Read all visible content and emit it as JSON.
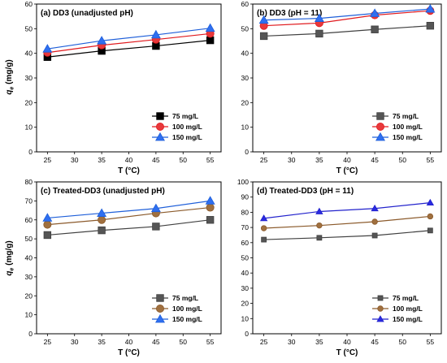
{
  "chart_data": [
    {
      "type": "line",
      "title": "(a) DD3 (unadjusted pH)",
      "xlabel": "T (°C)",
      "ylabel_main": "q",
      "ylabel_sub": "e",
      "ylabel_unit": " (mg/g)",
      "xlim": [
        23,
        57
      ],
      "ylim": [
        0,
        60
      ],
      "xticks": [
        25,
        30,
        35,
        40,
        45,
        50,
        55
      ],
      "yticks": [
        0,
        10,
        20,
        30,
        40,
        50,
        60
      ],
      "x": [
        25,
        35,
        45,
        55
      ],
      "legend_position": "bottom-right",
      "series": [
        {
          "name": "75 mg/L",
          "values": [
            38.5,
            41,
            43,
            45.3
          ],
          "color": "#000000",
          "fill": "#000000",
          "marker": "square"
        },
        {
          "name": "100 mg/L",
          "values": [
            40.3,
            43.3,
            45.6,
            48
          ],
          "color": "#e0191d",
          "fill": "#e8383b",
          "marker": "circle"
        },
        {
          "name": "150 mg/L",
          "values": [
            41.8,
            45.1,
            47.5,
            50.2
          ],
          "color": "#1f5fd9",
          "fill": "#2f6ff0",
          "marker": "triangle"
        }
      ]
    },
    {
      "type": "line",
      "title": "(b) DD3 (pH = 11)",
      "xlabel": "T (°C)",
      "ylabel_main": "",
      "ylabel_sub": "",
      "ylabel_unit": "",
      "xlim": [
        23,
        57
      ],
      "ylim": [
        0,
        60
      ],
      "xticks": [
        25,
        30,
        35,
        40,
        45,
        50,
        55
      ],
      "yticks": [
        0,
        10,
        20,
        30,
        40,
        50,
        60
      ],
      "x": [
        25,
        35,
        45,
        55
      ],
      "legend_position": "bottom-right",
      "series": [
        {
          "name": "75 mg/L",
          "values": [
            47,
            48,
            49.7,
            51.2
          ],
          "color": "#404040",
          "fill": "#555555",
          "marker": "square"
        },
        {
          "name": "100 mg/L",
          "values": [
            51.2,
            52.3,
            55.5,
            57.3
          ],
          "color": "#e0191d",
          "fill": "#e8383b",
          "marker": "circle"
        },
        {
          "name": "150 mg/L",
          "values": [
            53.5,
            54.2,
            56.2,
            58
          ],
          "color": "#1f5fd9",
          "fill": "#2f6ff0",
          "marker": "triangle"
        }
      ]
    },
    {
      "type": "line",
      "title": "(c) Treated-DD3 (unadjusted pH)",
      "xlabel": "T (°C)",
      "ylabel_main": "q",
      "ylabel_sub": "e",
      "ylabel_unit": " (mg/g)",
      "xlim": [
        23,
        57
      ],
      "ylim": [
        0,
        80
      ],
      "xticks": [
        25,
        30,
        35,
        40,
        45,
        50,
        55
      ],
      "yticks": [
        0,
        10,
        20,
        30,
        40,
        50,
        60,
        70,
        80
      ],
      "x": [
        25,
        35,
        45,
        55
      ],
      "legend_position": "bottom-right",
      "series": [
        {
          "name": "75 mg/L",
          "values": [
            52,
            54.5,
            56.5,
            60
          ],
          "color": "#404040",
          "fill": "#555555",
          "marker": "square"
        },
        {
          "name": "100 mg/L",
          "values": [
            57.5,
            60,
            63.5,
            66.5
          ],
          "color": "#8b5a2b",
          "fill": "#a0703f",
          "marker": "circle"
        },
        {
          "name": "150 mg/L",
          "values": [
            61,
            63.5,
            66,
            70
          ],
          "color": "#1f5fd9",
          "fill": "#2f6ff0",
          "marker": "triangle"
        }
      ]
    },
    {
      "type": "line",
      "title": "(d) Treated-DD3 (pH = 11)",
      "xlabel": "T (°C)",
      "ylabel_main": "",
      "ylabel_sub": "",
      "ylabel_unit": "",
      "xlim": [
        23,
        57
      ],
      "ylim": [
        0,
        100
      ],
      "xticks": [
        25,
        30,
        35,
        40,
        45,
        50,
        55
      ],
      "yticks": [
        0,
        10,
        20,
        30,
        40,
        50,
        60,
        70,
        80,
        90,
        100
      ],
      "x": [
        25,
        35,
        45,
        55
      ],
      "legend_position": "bottom-right",
      "series": [
        {
          "name": "75 mg/L",
          "values": [
            62,
            63.2,
            64.7,
            68
          ],
          "color": "#404040",
          "fill": "#555555",
          "marker": "square-small"
        },
        {
          "name": "100 mg/L",
          "values": [
            69.5,
            71.3,
            73.8,
            77.3
          ],
          "color": "#8b5a2b",
          "fill": "#a0703f",
          "marker": "circle-small"
        },
        {
          "name": "150 mg/L",
          "values": [
            76,
            80.5,
            82.5,
            86.3
          ],
          "color": "#2222cc",
          "fill": "#2a2ae0",
          "marker": "triangle-small"
        }
      ]
    }
  ]
}
